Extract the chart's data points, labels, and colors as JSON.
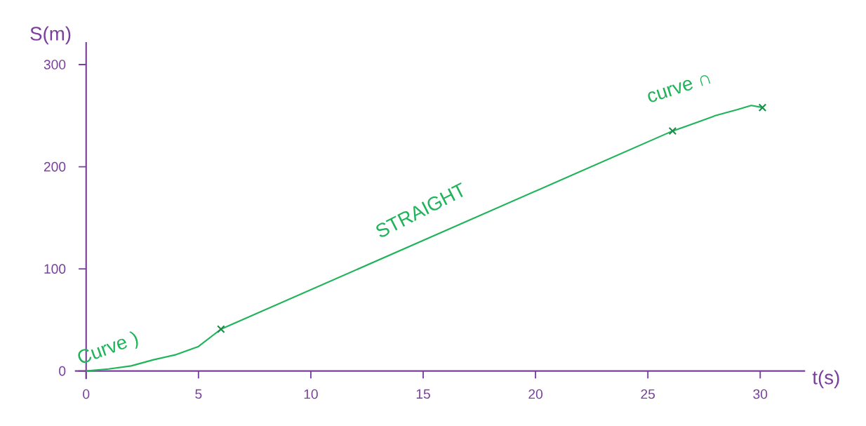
{
  "chart_data": {
    "type": "line",
    "xlabel": "t(s)",
    "ylabel": "S(m)",
    "xlim": [
      -0.5,
      32
    ],
    "ylim": [
      -8,
      322
    ],
    "xticks": [
      0,
      5,
      10,
      15,
      20,
      25,
      30
    ],
    "yticks": [
      0,
      100,
      200,
      300
    ],
    "grid": false,
    "series": [
      {
        "color": "#1fb35a",
        "marker": "none",
        "line_style": "solid",
        "x": [
          0,
          1,
          2,
          3,
          4,
          5,
          6,
          26.1,
          27,
          28,
          29,
          29.6,
          30.1
        ],
        "values": [
          0,
          2,
          5,
          11,
          16,
          24,
          41,
          235,
          242,
          250,
          256,
          260,
          258
        ]
      },
      {
        "type": "scatter",
        "color": "#1a8f4a",
        "marker": "cross",
        "x": [
          6,
          26.1,
          30.1
        ],
        "values": [
          41,
          235,
          258
        ]
      }
    ],
    "annotations": [
      {
        "text": "Curve )",
        "x": 3,
        "y": 11
      },
      {
        "text": "STRAIGHT",
        "x": 15,
        "y": 128
      },
      {
        "text": "curve ∩",
        "x": 28,
        "y": 250
      }
    ]
  }
}
